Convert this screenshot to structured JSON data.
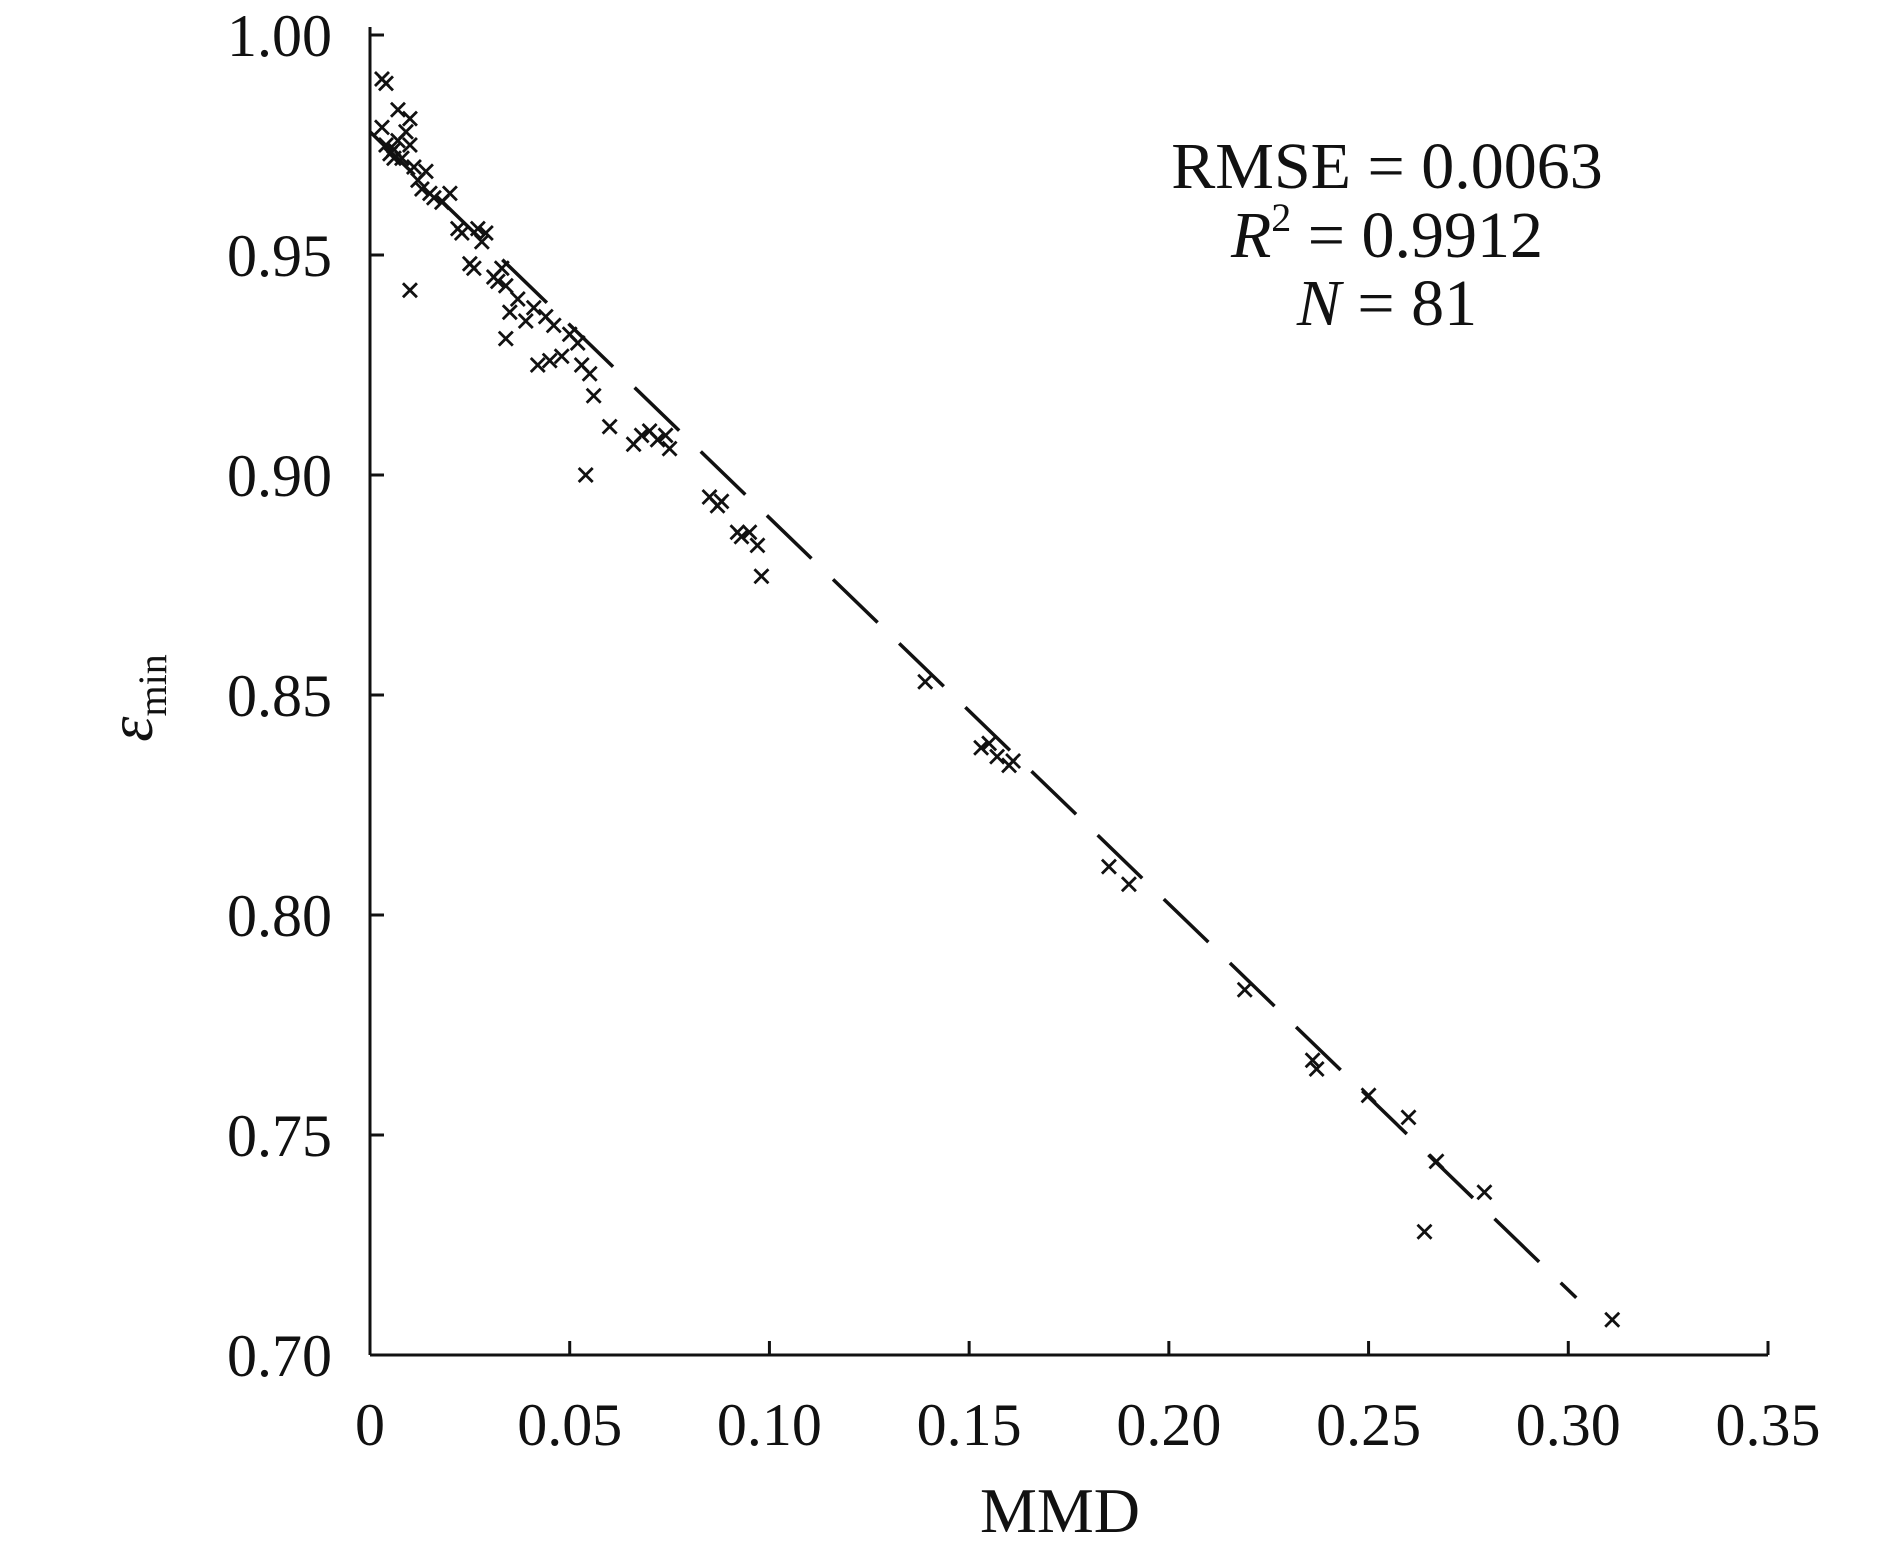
{
  "chart_data": {
    "type": "scatter",
    "title": "",
    "xlabel": "MMD",
    "ylabel": {
      "symbol": "ε",
      "subscript": "min"
    },
    "xlim": [
      0,
      0.35
    ],
    "ylim": [
      0.7,
      1.0
    ],
    "x_ticks": [
      "0",
      "0.05",
      "0.10",
      "0.15",
      "0.20",
      "0.25",
      "0.30",
      "0.35"
    ],
    "y_ticks": [
      "0.70",
      "0.75",
      "0.80",
      "0.85",
      "0.90",
      "0.95",
      "1.00"
    ],
    "grid": false,
    "marker": "x",
    "annotations": {
      "rmse": "RMSE = 0.0063",
      "r2_symbol": "R",
      "r2_sup": "2",
      "r2_value": " = 0.9912",
      "n_symbol": "N",
      "n_value": " = 81"
    },
    "fit_line": {
      "style": "dashed",
      "x_start": 0.0,
      "y_start": 0.978,
      "x_end": 0.302,
      "y_end": 0.713
    },
    "points": [
      [
        0.003,
        0.99
      ],
      [
        0.004,
        0.989
      ],
      [
        0.003,
        0.979
      ],
      [
        0.004,
        0.975
      ],
      [
        0.005,
        0.973
      ],
      [
        0.006,
        0.974
      ],
      [
        0.007,
        0.976
      ],
      [
        0.007,
        0.983
      ],
      [
        0.008,
        0.972
      ],
      [
        0.009,
        0.978
      ],
      [
        0.01,
        0.981
      ],
      [
        0.01,
        0.975
      ],
      [
        0.011,
        0.97
      ],
      [
        0.012,
        0.967
      ],
      [
        0.013,
        0.965
      ],
      [
        0.014,
        0.969
      ],
      [
        0.015,
        0.964
      ],
      [
        0.016,
        0.963
      ],
      [
        0.01,
        0.942
      ],
      [
        0.02,
        0.964
      ],
      [
        0.022,
        0.956
      ],
      [
        0.023,
        0.955
      ],
      [
        0.025,
        0.948
      ],
      [
        0.026,
        0.947
      ],
      [
        0.027,
        0.956
      ],
      [
        0.028,
        0.953
      ],
      [
        0.029,
        0.955
      ],
      [
        0.031,
        0.945
      ],
      [
        0.033,
        0.947
      ],
      [
        0.034,
        0.943
      ],
      [
        0.035,
        0.937
      ],
      [
        0.034,
        0.931
      ],
      [
        0.037,
        0.94
      ],
      [
        0.039,
        0.935
      ],
      [
        0.041,
        0.938
      ],
      [
        0.042,
        0.925
      ],
      [
        0.044,
        0.936
      ],
      [
        0.045,
        0.926
      ],
      [
        0.046,
        0.934
      ],
      [
        0.048,
        0.927
      ],
      [
        0.05,
        0.932
      ],
      [
        0.052,
        0.93
      ],
      [
        0.053,
        0.925
      ],
      [
        0.055,
        0.923
      ],
      [
        0.056,
        0.918
      ],
      [
        0.054,
        0.9
      ],
      [
        0.06,
        0.911
      ],
      [
        0.066,
        0.907
      ],
      [
        0.068,
        0.909
      ],
      [
        0.07,
        0.91
      ],
      [
        0.072,
        0.908
      ],
      [
        0.074,
        0.909
      ],
      [
        0.075,
        0.906
      ],
      [
        0.085,
        0.895
      ],
      [
        0.087,
        0.893
      ],
      [
        0.088,
        0.894
      ],
      [
        0.093,
        0.886
      ],
      [
        0.095,
        0.887
      ],
      [
        0.097,
        0.884
      ],
      [
        0.098,
        0.877
      ],
      [
        0.139,
        0.853
      ],
      [
        0.153,
        0.838
      ],
      [
        0.155,
        0.839
      ],
      [
        0.157,
        0.836
      ],
      [
        0.16,
        0.834
      ],
      [
        0.161,
        0.835
      ],
      [
        0.185,
        0.811
      ],
      [
        0.19,
        0.807
      ],
      [
        0.219,
        0.783
      ],
      [
        0.236,
        0.767
      ],
      [
        0.237,
        0.765
      ],
      [
        0.25,
        0.759
      ],
      [
        0.26,
        0.754
      ],
      [
        0.264,
        0.728
      ],
      [
        0.267,
        0.744
      ],
      [
        0.279,
        0.737
      ],
      [
        0.311,
        0.708
      ],
      [
        0.006,
        0.972
      ],
      [
        0.018,
        0.962
      ],
      [
        0.032,
        0.944
      ],
      [
        0.092,
        0.887
      ]
    ]
  }
}
